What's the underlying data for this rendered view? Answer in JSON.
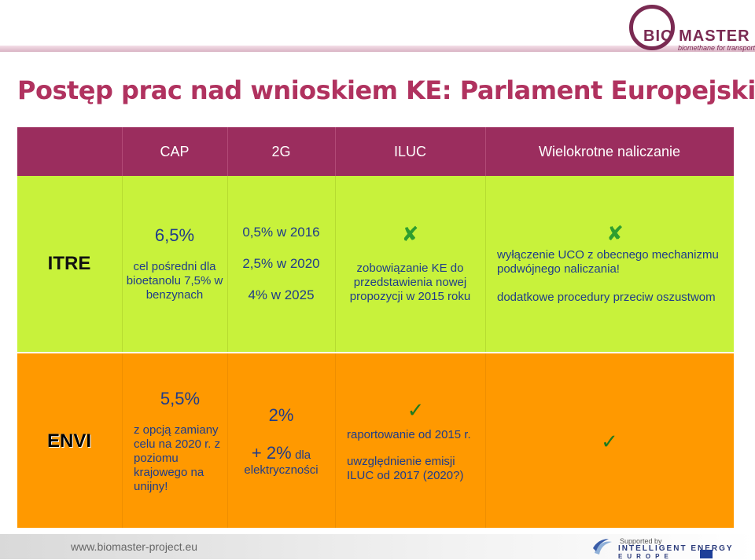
{
  "logo": {
    "text": "BIO MASTER",
    "tagline": "biomethane for transport"
  },
  "title": "Postęp prac nad wnioskiem KE: Parlament Europejski",
  "table": {
    "headers": [
      "",
      "CAP",
      "2G",
      "ILUC",
      "Wielokrotne naliczanie"
    ],
    "itre": {
      "label": "ITRE",
      "cap_value": "6,5%",
      "cap_note": "cel pośredni dla bioetanolu 7,5% w benzynach",
      "g2_lines": [
        "0,5% w 2016",
        "2,5% w 2020",
        "4% w 2025"
      ],
      "iluc_mark": "✘",
      "iluc_text": "zobowiązanie KE do przedstawienia nowej propozycji w 2015 roku",
      "multi_mark": "✘",
      "multi_text1": "wyłączenie UCO z obecnego mechanizmu podwójnego naliczania!",
      "multi_text2": "dodatkowe procedury przeciw oszustwom"
    },
    "envi": {
      "label": "ENVI",
      "cap_value": "5,5%",
      "cap_note": "z opcją zamiany celu na 2020 r. z poziomu krajowego na unijny!",
      "g2_value": "2%",
      "g2_plus": "+ 2%",
      "g2_plus_suffix": "dla",
      "g2_note": "elektryczności",
      "iluc_mark": "✓",
      "iluc_text1": "raportowanie od 2015 r.",
      "iluc_text2": "uwzględnienie emisji ILUC od 2017 (2020?)",
      "multi_mark": "✓"
    }
  },
  "footer": {
    "url": "www.biomaster-project.eu",
    "supported": "Supported by",
    "iee_line1": "INTELLIGENT ENERGY",
    "iee_line2": "EUROPE"
  },
  "colors": {
    "header_row": "#9b2d5e",
    "itre_row": "#c8f23b",
    "envi_row": "#ff9900",
    "title": "#b0325f",
    "body_text": "#1f3c8a"
  }
}
